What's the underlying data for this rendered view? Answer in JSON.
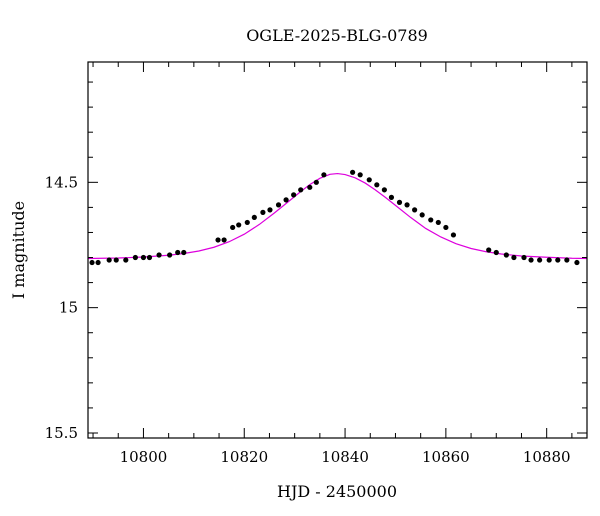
{
  "chart_data": {
    "type": "scatter",
    "title": "OGLE-2025-BLG-0789",
    "xlabel": "HJD - 2450000",
    "ylabel": "I magnitude",
    "xlim": [
      10789,
      10888
    ],
    "ylim": [
      15.52,
      14.02
    ],
    "y_axis_inverted": true,
    "x_ticks": [
      10800,
      10820,
      10840,
      10860,
      10880
    ],
    "x_tick_labels": [
      "10800",
      "10820",
      "10840",
      "10860",
      "10880"
    ],
    "y_ticks": [
      14.5,
      15.0,
      15.5
    ],
    "y_tick_labels": [
      "14.5",
      "15",
      "15.5"
    ],
    "grid": false,
    "legend": "none",
    "colors": {
      "points": "#000000",
      "model": "#dd00dd",
      "axes": "#000000"
    },
    "series": [
      {
        "kind": "points",
        "x": [
          10789.8,
          10791.0,
          10793.2,
          10794.6,
          10796.5,
          10798.4,
          10800.0,
          10801.2,
          10803.1,
          10805.2,
          10806.8,
          10808.0,
          10814.8,
          10816.0,
          10817.7,
          10818.9,
          10820.6,
          10822.0,
          10823.7,
          10825.1,
          10826.8,
          10828.3,
          10829.8,
          10831.2,
          10833.0,
          10834.3,
          10835.8,
          10841.5,
          10843.0,
          10844.8,
          10846.3,
          10847.8,
          10849.2,
          10850.8,
          10852.3,
          10853.8,
          10855.3,
          10857.0,
          10858.5,
          10860.0,
          10861.5,
          10868.5,
          10870.0,
          10872.0,
          10873.5,
          10875.5,
          10876.9,
          10878.6,
          10880.5,
          10882.2,
          10884.0,
          10886.0
        ],
        "y": [
          14.82,
          14.82,
          14.81,
          14.81,
          14.81,
          14.8,
          14.8,
          14.8,
          14.79,
          14.79,
          14.78,
          14.78,
          14.73,
          14.73,
          14.68,
          14.67,
          14.66,
          14.64,
          14.62,
          14.61,
          14.59,
          14.57,
          14.55,
          14.53,
          14.52,
          14.5,
          14.47,
          14.46,
          14.47,
          14.49,
          14.51,
          14.53,
          14.56,
          14.58,
          14.59,
          14.61,
          14.63,
          14.65,
          14.66,
          14.68,
          14.71,
          14.77,
          14.78,
          14.79,
          14.8,
          14.8,
          14.81,
          14.81,
          14.81,
          14.81,
          14.81,
          14.82
        ]
      },
      {
        "kind": "model",
        "x": [
          10789,
          10795,
          10800,
          10805,
          10808,
          10811,
          10814,
          10817,
          10820,
          10823,
          10826,
          10829,
          10831,
          10833,
          10835,
          10837,
          10838.5,
          10840,
          10842,
          10844,
          10846,
          10848,
          10850,
          10853,
          10856,
          10859,
          10862,
          10865,
          10868,
          10871,
          10875,
          10880,
          10885,
          10888
        ],
        "y": [
          14.804,
          14.802,
          14.798,
          14.791,
          14.784,
          14.774,
          14.759,
          14.737,
          14.707,
          14.668,
          14.622,
          14.573,
          14.54,
          14.509,
          14.484,
          14.468,
          14.465,
          14.469,
          14.482,
          14.503,
          14.53,
          14.56,
          14.592,
          14.64,
          14.684,
          14.718,
          14.745,
          14.764,
          14.777,
          14.786,
          14.794,
          14.799,
          14.803,
          14.804
        ]
      }
    ]
  }
}
